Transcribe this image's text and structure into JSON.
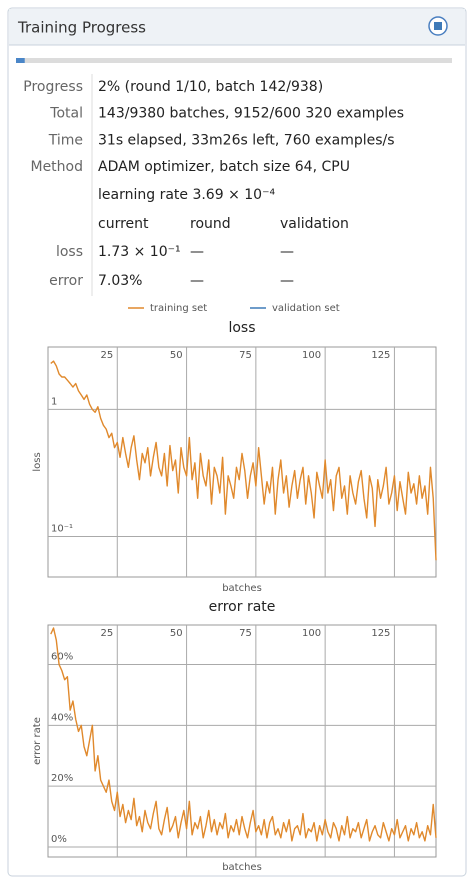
{
  "panel": {
    "title": "Training Progress",
    "progress_fraction": 2,
    "rows": [
      {
        "label": "Progress",
        "value": "2% (round 1/10, batch 142/938)"
      },
      {
        "label": "Total",
        "value": "143/9380 batches, 9152/600 320 examples"
      },
      {
        "label": "Time",
        "value": "31s elapsed, 33m26s left, 760 examples/s"
      },
      {
        "label": "Method",
        "value": "ADAM optimizer, batch size 64, CPU"
      }
    ],
    "learning_rate": "learning rate 3.69 × 10⁻⁴",
    "table": {
      "header": [
        "current",
        "round",
        "validation"
      ],
      "rows": [
        [
          "loss",
          "1.73 × 10⁻¹",
          "—",
          "—"
        ],
        [
          "error",
          "7.03%",
          "—",
          "—"
        ]
      ]
    },
    "legend": [
      {
        "name": "training set",
        "color": "#e0892c"
      },
      {
        "name": "validation set",
        "color": "#3e7ab8"
      }
    ]
  },
  "chart_data": [
    {
      "type": "line",
      "title": "loss",
      "x_label": "batches",
      "y_label": "loss",
      "log_y": true,
      "grid": true,
      "x": [
        1,
        2,
        3,
        4,
        5,
        6,
        7,
        8,
        9,
        10,
        11,
        12,
        13,
        14,
        15,
        16,
        17,
        18,
        19,
        20,
        21,
        22,
        23,
        24,
        25,
        26,
        27,
        28,
        29,
        30,
        31,
        32,
        33,
        34,
        35,
        36,
        37,
        38,
        39,
        40,
        41,
        42,
        43,
        44,
        45,
        46,
        47,
        48,
        49,
        50,
        51,
        52,
        53,
        54,
        55,
        56,
        57,
        58,
        59,
        60,
        61,
        62,
        63,
        64,
        65,
        66,
        67,
        68,
        69,
        70,
        71,
        72,
        73,
        74,
        75,
        76,
        77,
        78,
        79,
        80,
        81,
        82,
        83,
        84,
        85,
        86,
        87,
        88,
        89,
        90,
        91,
        92,
        93,
        94,
        95,
        96,
        97,
        98,
        99,
        100,
        101,
        102,
        103,
        104,
        105,
        106,
        107,
        108,
        109,
        110,
        111,
        112,
        113,
        114,
        115,
        116,
        117,
        118,
        119,
        120,
        121,
        122,
        123,
        124,
        125,
        126,
        127,
        128,
        129,
        130,
        131,
        132,
        133,
        134,
        135,
        136,
        137,
        138,
        139,
        140
      ],
      "series": [
        {
          "name": "training set",
          "color": "#e0892c",
          "values": [
            2.3,
            2.4,
            2.2,
            1.9,
            1.8,
            1.8,
            1.7,
            1.6,
            1.5,
            1.6,
            1.4,
            1.3,
            1.2,
            1.3,
            1.1,
            1.0,
            0.95,
            1.05,
            0.85,
            0.75,
            0.7,
            0.6,
            0.65,
            0.5,
            0.55,
            0.42,
            0.6,
            0.45,
            0.35,
            0.5,
            0.62,
            0.4,
            0.28,
            0.45,
            0.38,
            0.5,
            0.3,
            0.42,
            0.55,
            0.35,
            0.3,
            0.45,
            0.25,
            0.52,
            0.33,
            0.4,
            0.22,
            0.5,
            0.35,
            0.3,
            0.6,
            0.28,
            0.38,
            0.2,
            0.45,
            0.3,
            0.25,
            0.4,
            0.18,
            0.35,
            0.3,
            0.22,
            0.42,
            0.15,
            0.3,
            0.25,
            0.2,
            0.35,
            0.28,
            0.45,
            0.33,
            0.2,
            0.3,
            0.38,
            0.25,
            0.5,
            0.3,
            0.18,
            0.27,
            0.22,
            0.35,
            0.15,
            0.28,
            0.4,
            0.22,
            0.3,
            0.17,
            0.25,
            0.33,
            0.2,
            0.28,
            0.35,
            0.18,
            0.3,
            0.22,
            0.14,
            0.32,
            0.25,
            0.2,
            0.4,
            0.22,
            0.28,
            0.16,
            0.3,
            0.35,
            0.2,
            0.25,
            0.15,
            0.3,
            0.22,
            0.18,
            0.27,
            0.33,
            0.2,
            0.14,
            0.3,
            0.24,
            0.12,
            0.28,
            0.2,
            0.25,
            0.35,
            0.18,
            0.22,
            0.3,
            0.16,
            0.27,
            0.2,
            0.15,
            0.32,
            0.22,
            0.26,
            0.18,
            0.3,
            0.2,
            0.25,
            0.15,
            0.35,
            0.2,
            0.065
          ]
        }
      ],
      "xlim": [
        0,
        140
      ],
      "xticks": [
        25,
        50,
        75,
        100,
        125
      ],
      "ylim": [
        0.048,
        3.1
      ],
      "yticks": [
        1,
        {
          "value": 0.1,
          "label": "10⁻¹"
        }
      ]
    },
    {
      "type": "line",
      "title": "error rate",
      "x_label": "batches",
      "y_label": "error rate",
      "log_y": false,
      "grid": true,
      "x": [
        1,
        2,
        3,
        4,
        5,
        6,
        7,
        8,
        9,
        10,
        11,
        12,
        13,
        14,
        15,
        16,
        17,
        18,
        19,
        20,
        21,
        22,
        23,
        24,
        25,
        26,
        27,
        28,
        29,
        30,
        31,
        32,
        33,
        34,
        35,
        36,
        37,
        38,
        39,
        40,
        41,
        42,
        43,
        44,
        45,
        46,
        47,
        48,
        49,
        50,
        51,
        52,
        53,
        54,
        55,
        56,
        57,
        58,
        59,
        60,
        61,
        62,
        63,
        64,
        65,
        66,
        67,
        68,
        69,
        70,
        71,
        72,
        73,
        74,
        75,
        76,
        77,
        78,
        79,
        80,
        81,
        82,
        83,
        84,
        85,
        86,
        87,
        88,
        89,
        90,
        91,
        92,
        93,
        94,
        95,
        96,
        97,
        98,
        99,
        100,
        101,
        102,
        103,
        104,
        105,
        106,
        107,
        108,
        109,
        110,
        111,
        112,
        113,
        114,
        115,
        116,
        117,
        118,
        119,
        120,
        121,
        122,
        123,
        124,
        125,
        126,
        127,
        128,
        129,
        130,
        131,
        132,
        133,
        134,
        135,
        136,
        137,
        138,
        139,
        140
      ],
      "series": [
        {
          "name": "training set",
          "color": "#e0892c",
          "values": [
            70,
            72,
            68,
            60,
            58,
            55,
            56,
            45,
            48,
            42,
            38,
            40,
            33,
            30,
            35,
            40,
            25,
            30,
            22,
            20,
            18,
            22,
            15,
            12,
            18,
            10,
            14,
            8,
            12,
            9,
            16,
            7,
            10,
            5,
            12,
            8,
            6,
            11,
            15,
            6,
            4,
            9,
            13,
            5,
            7,
            10,
            3,
            8,
            12,
            6,
            15,
            4,
            8,
            6,
            10,
            3,
            7,
            12,
            5,
            9,
            4,
            8,
            6,
            11,
            3,
            7,
            5,
            9,
            4,
            10,
            6,
            3,
            8,
            12,
            5,
            7,
            4,
            9,
            3,
            8,
            10,
            4,
            6,
            3,
            8,
            5,
            9,
            2,
            6,
            7,
            4,
            11,
            3,
            6,
            5,
            8,
            2,
            7,
            4,
            9,
            5,
            3,
            8,
            6,
            2,
            7,
            4,
            10,
            3,
            6,
            5,
            8,
            3,
            6,
            9,
            2,
            5,
            7,
            4,
            3,
            8,
            5,
            2,
            6,
            4,
            9,
            3,
            5,
            7,
            2,
            6,
            4,
            8,
            3,
            5,
            2,
            7,
            4,
            14,
            3
          ]
        }
      ],
      "xlim": [
        0,
        140
      ],
      "xticks": [
        25,
        50,
        75,
        100,
        125
      ],
      "ylim": [
        -3.3,
        73
      ],
      "yticks": [
        {
          "value": 0,
          "label": "0%"
        },
        {
          "value": 20,
          "label": "20%"
        },
        {
          "value": 40,
          "label": "40%"
        },
        {
          "value": 60,
          "label": "60%"
        }
      ]
    }
  ]
}
